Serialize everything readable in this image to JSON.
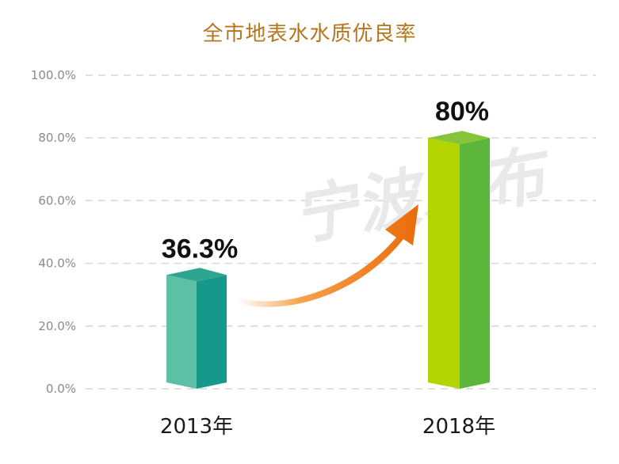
{
  "chart_data": {
    "type": "bar",
    "title": "全市地表水水质优良率",
    "categories": [
      "2013年",
      "2018年"
    ],
    "values": [
      36.3,
      80
    ],
    "value_labels": [
      "36.3%",
      "80%"
    ],
    "ylim": [
      0,
      100
    ],
    "yticks": [
      "0.0%",
      "20.0%",
      "40.0%",
      "60.0%",
      "80.0%",
      "100.0%"
    ],
    "ytick_values": [
      0,
      20,
      40,
      60,
      80,
      100
    ],
    "grid": true,
    "watermark": "宁波发布",
    "colors": {
      "title": "#b8751f",
      "bar1_front": "#5dbfa3",
      "bar1_side": "#16998a",
      "bar1_top": "#2ea58f",
      "bar2_front": "#b2d400",
      "bar2_side": "#5cb63b",
      "bar2_top": "#88c43a",
      "arrow": "#f07a12",
      "grid": "#d5d5d5",
      "ticks": "#8a8a8a"
    }
  }
}
